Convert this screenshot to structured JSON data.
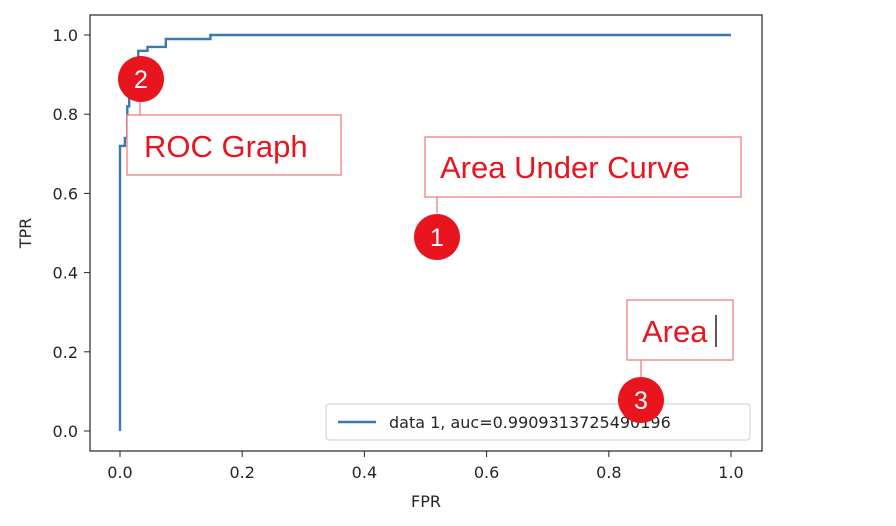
{
  "chart_data": {
    "type": "line",
    "xlabel": "FPR",
    "ylabel": "TPR",
    "xlim": [
      -0.05,
      1.05
    ],
    "ylim": [
      -0.05,
      1.05
    ],
    "x_ticks": [
      "0.0",
      "0.2",
      "0.4",
      "0.6",
      "0.8",
      "1.0"
    ],
    "y_ticks": [
      "0.0",
      "0.2",
      "0.4",
      "0.6",
      "0.8",
      "1.0"
    ],
    "grid": false,
    "legend_position": "bottom-right",
    "series": [
      {
        "name": "data 1, auc=0.9909313725490196",
        "color": "#3b78b4",
        "x": [
          0.0,
          0.0,
          0.002,
          0.002,
          0.008,
          0.008,
          0.012,
          0.012,
          0.015,
          0.015,
          0.02,
          0.02,
          0.03,
          0.03,
          0.045,
          0.045,
          0.075,
          0.075,
          0.148,
          0.148,
          1.0
        ],
        "y": [
          0.0,
          0.72,
          0.72,
          0.72,
          0.72,
          0.74,
          0.74,
          0.82,
          0.82,
          0.88,
          0.88,
          0.91,
          0.91,
          0.96,
          0.96,
          0.97,
          0.97,
          0.99,
          0.99,
          1.0,
          1.0
        ]
      }
    ]
  },
  "annotations": [
    {
      "label": "ROC Graph",
      "badge": "2"
    },
    {
      "label": "Area Under Curve",
      "badge": "1"
    },
    {
      "label": "Area",
      "badge": "3"
    }
  ],
  "colors": {
    "annotation": "#e8141e",
    "annotation_box": "#f08080",
    "series": "#3b78b4"
  }
}
